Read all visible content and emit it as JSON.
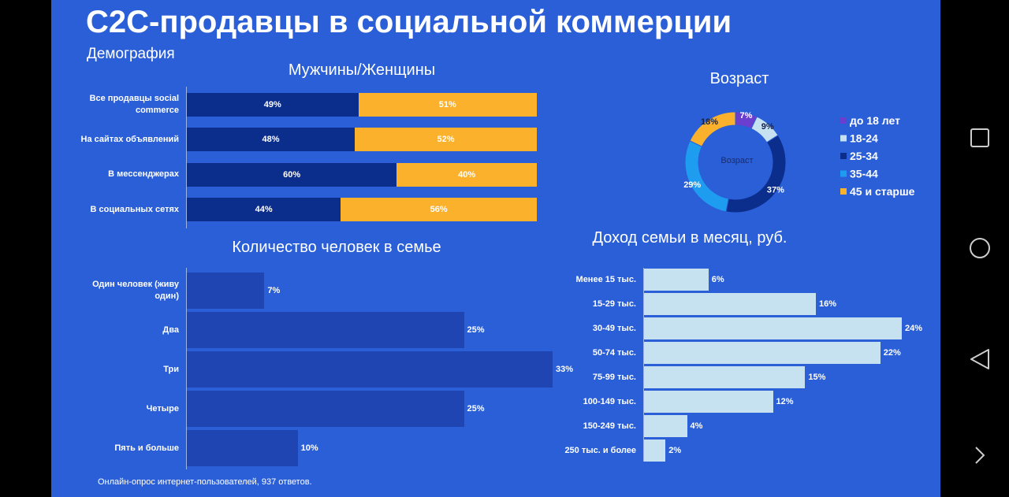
{
  "title": "C2C-продавцы в социальной коммерции",
  "subtitle": "Демография",
  "note": "Онлайн-опрос интернет-пользователей, 937 ответов.",
  "chart_data": [
    {
      "type": "bar",
      "orientation": "horizontal",
      "stacked": true,
      "title": "Мужчины/Женщины",
      "categories": [
        "Все продавцы social commerce",
        "На сайтах объявлений",
        "В мессенджерах",
        "В социальных сетях"
      ],
      "xlim": [
        0,
        100
      ],
      "series": [
        {
          "color": "#0b2d8c",
          "values": [
            49,
            48,
            60,
            44
          ],
          "value_labels": [
            "49%",
            "48%",
            "60%",
            "44%"
          ]
        },
        {
          "color": "#fbb12b",
          "values": [
            51,
            52,
            40,
            56
          ],
          "value_labels": [
            "51%",
            "52%",
            "40%",
            "56%"
          ]
        }
      ]
    },
    {
      "type": "pie",
      "title": "Возраст",
      "center_label": "Возраст",
      "legend": "right",
      "categories": [
        "до 18 лет",
        "18-24",
        "25-34",
        "35-44",
        "45 и старше"
      ],
      "values": [
        7,
        9,
        37,
        29,
        18
      ],
      "value_labels": [
        "7%",
        "9%",
        "37%",
        "29%",
        "18%"
      ],
      "colors": [
        "#6a3fd0",
        "#c6e1f0",
        "#0b2d8c",
        "#1e9cf0",
        "#fbb12b"
      ]
    },
    {
      "type": "bar",
      "orientation": "horizontal",
      "title": "Количество человек в семье",
      "categories": [
        "Один человек (живу один)",
        "Два",
        "Три",
        "Четыре",
        "Пять и больше"
      ],
      "values": [
        7,
        25,
        33,
        25,
        10
      ],
      "value_labels": [
        "7%",
        "25%",
        "33%",
        "25%",
        "10%"
      ],
      "color": "#1f45b3",
      "xlim": [
        0,
        33
      ]
    },
    {
      "type": "bar",
      "orientation": "horizontal",
      "title": "Доход семьи в месяц, руб.",
      "categories": [
        "Менее 15 тыс.",
        "15-29 тыс.",
        "30-49 тыс.",
        "50-74 тыс.",
        "75-99 тыс.",
        "100-149 тыс.",
        "150-249 тыс.",
        "250 тыс. и более"
      ],
      "values": [
        6,
        16,
        24,
        22,
        15,
        12,
        4,
        2
      ],
      "value_labels": [
        "6%",
        "16%",
        "24%",
        "22%",
        "15%",
        "12%",
        "4%",
        "2%"
      ],
      "color": "#c6e1f0",
      "xlim": [
        0,
        24
      ]
    }
  ]
}
